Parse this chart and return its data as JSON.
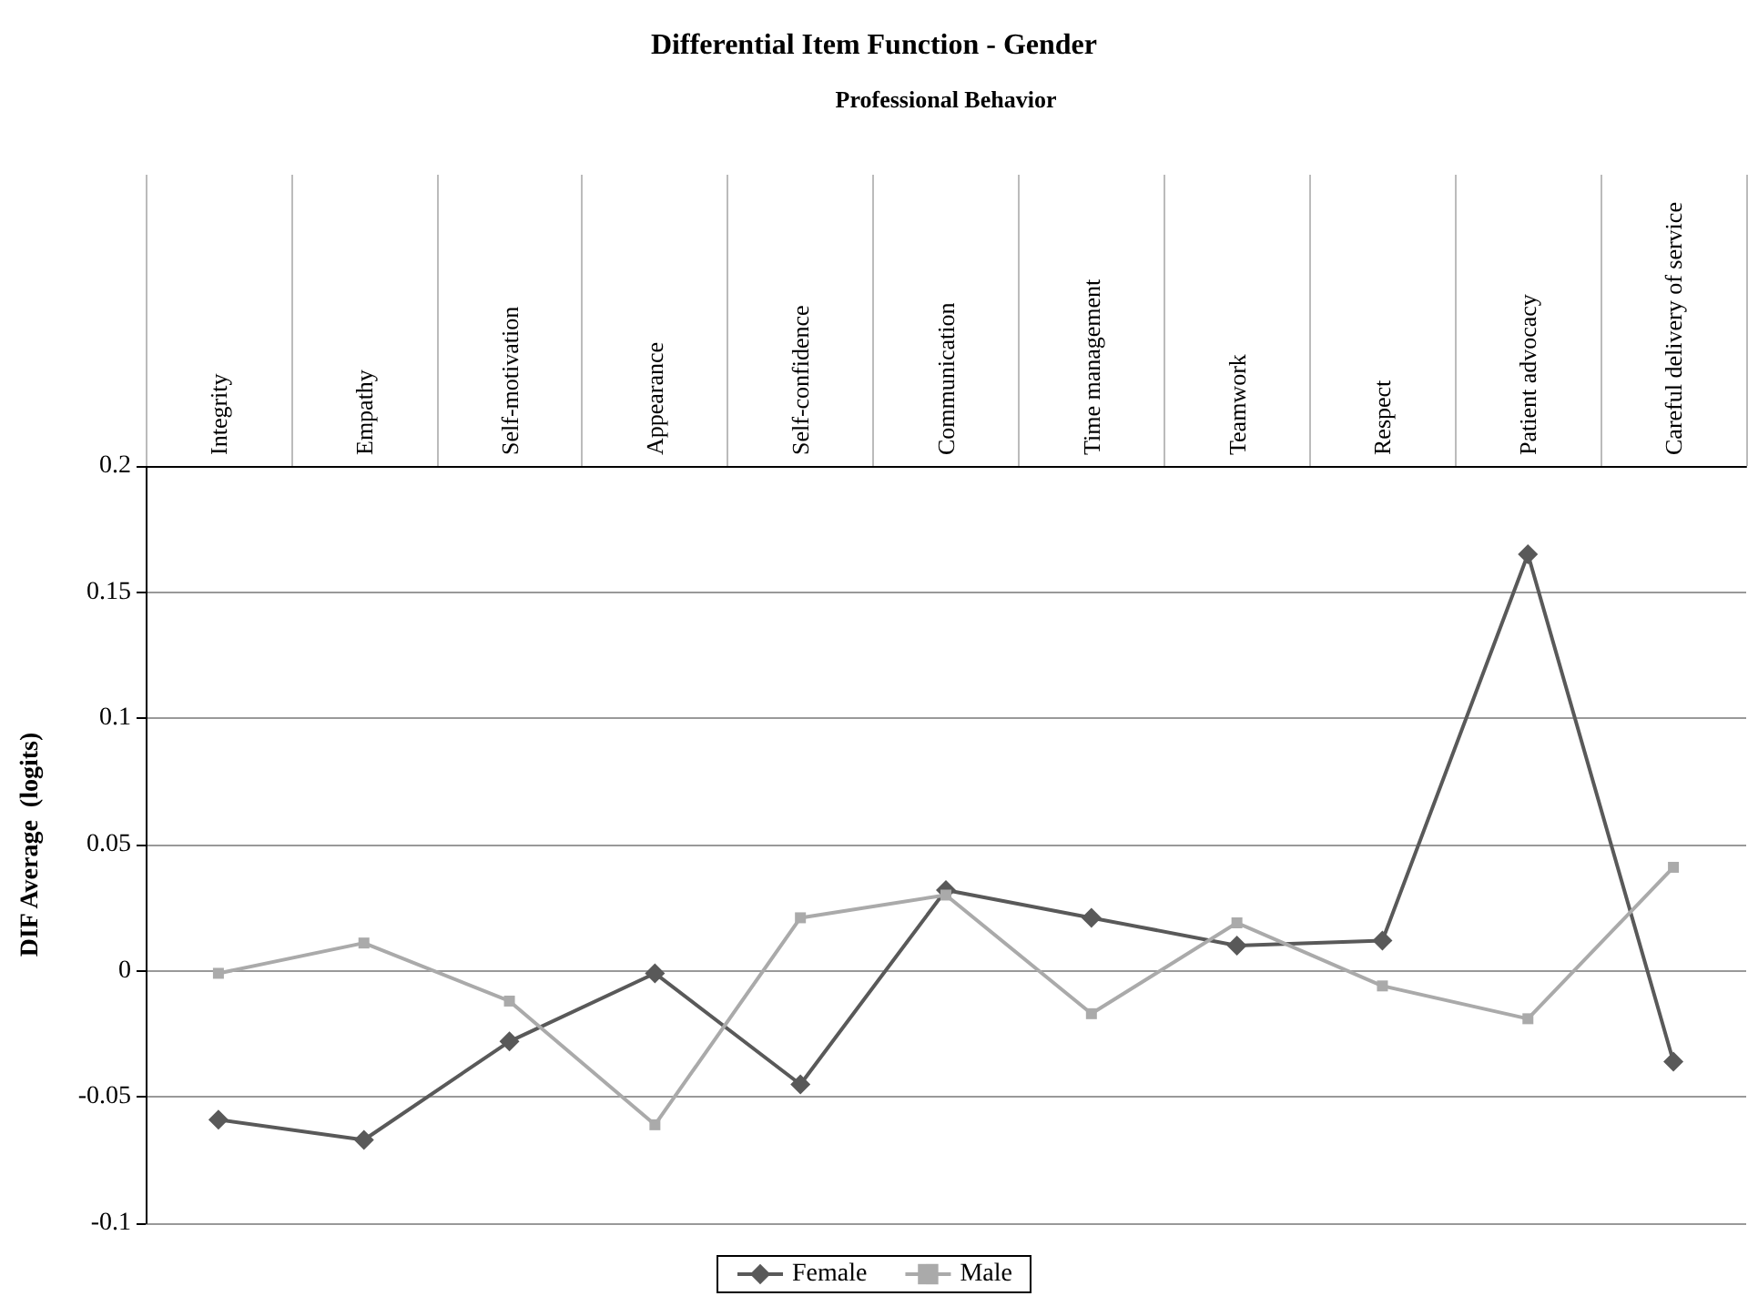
{
  "chart_data": {
    "type": "line",
    "title": "Differential Item Function - Gender",
    "xlabel": "Professional Behavior",
    "ylabel": "DIF Average  (logits)",
    "categories": [
      "Integrity",
      "Empathy",
      "Self-motivation",
      "Appearance",
      "Self-confidence",
      "Communication",
      "Time management",
      "Teamwork",
      "Respect",
      "Patient advocacy",
      "Careful delivery of service"
    ],
    "series": [
      {
        "name": "Female",
        "color": "#595959",
        "marker": "diamond",
        "values": [
          -0.059,
          -0.067,
          -0.028,
          -0.001,
          -0.045,
          0.032,
          0.021,
          0.01,
          0.012,
          0.165,
          -0.036
        ]
      },
      {
        "name": "Male",
        "color": "#aaaaaa",
        "marker": "square",
        "values": [
          -0.001,
          0.011,
          -0.012,
          -0.061,
          0.021,
          0.03,
          -0.017,
          0.019,
          -0.006,
          -0.019,
          0.041
        ]
      }
    ],
    "ylim": [
      -0.1,
      0.2
    ],
    "yticks": [
      -0.1,
      -0.05,
      0,
      0.05,
      0.1,
      0.15,
      0.2
    ],
    "grid": "y",
    "legend": "bottom",
    "line_style": "solid"
  }
}
